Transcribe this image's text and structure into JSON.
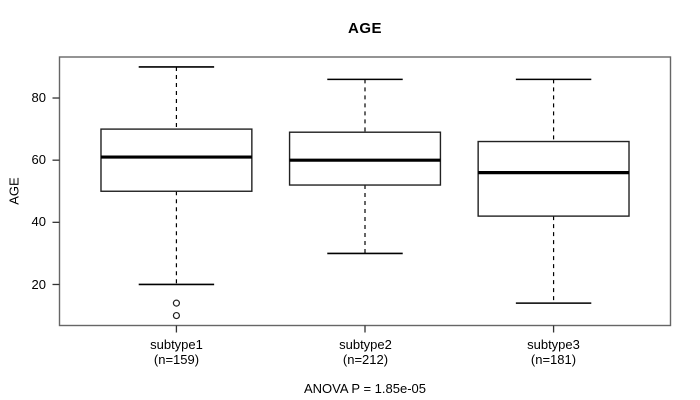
{
  "chart_data": {
    "type": "boxplot",
    "title": "AGE",
    "ylabel": "AGE",
    "xlabel": "",
    "footer": "ANOVA P = 1.85e-05",
    "yticks": [
      20,
      40,
      60,
      80
    ],
    "ylim": [
      6.8,
      93.2
    ],
    "grid": false,
    "legend": "none",
    "groups": [
      {
        "label": "subtype1",
        "n_label": "(n=159)",
        "whisker_low": 20,
        "q1": 50,
        "median": 61,
        "q3": 70,
        "whisker_high": 90,
        "outliers": [
          14,
          10
        ]
      },
      {
        "label": "subtype2",
        "n_label": "(n=212)",
        "whisker_low": 30,
        "q1": 52,
        "median": 60,
        "q3": 69,
        "whisker_high": 86,
        "outliers": []
      },
      {
        "label": "subtype3",
        "n_label": "(n=181)",
        "whisker_low": 14,
        "q1": 42,
        "median": 56,
        "q3": 66,
        "whisker_high": 86,
        "outliers": []
      }
    ],
    "colors": {
      "line": "#000000",
      "frame": "#666666",
      "box_fill": "#ffffff",
      "background": "#ffffff"
    }
  }
}
